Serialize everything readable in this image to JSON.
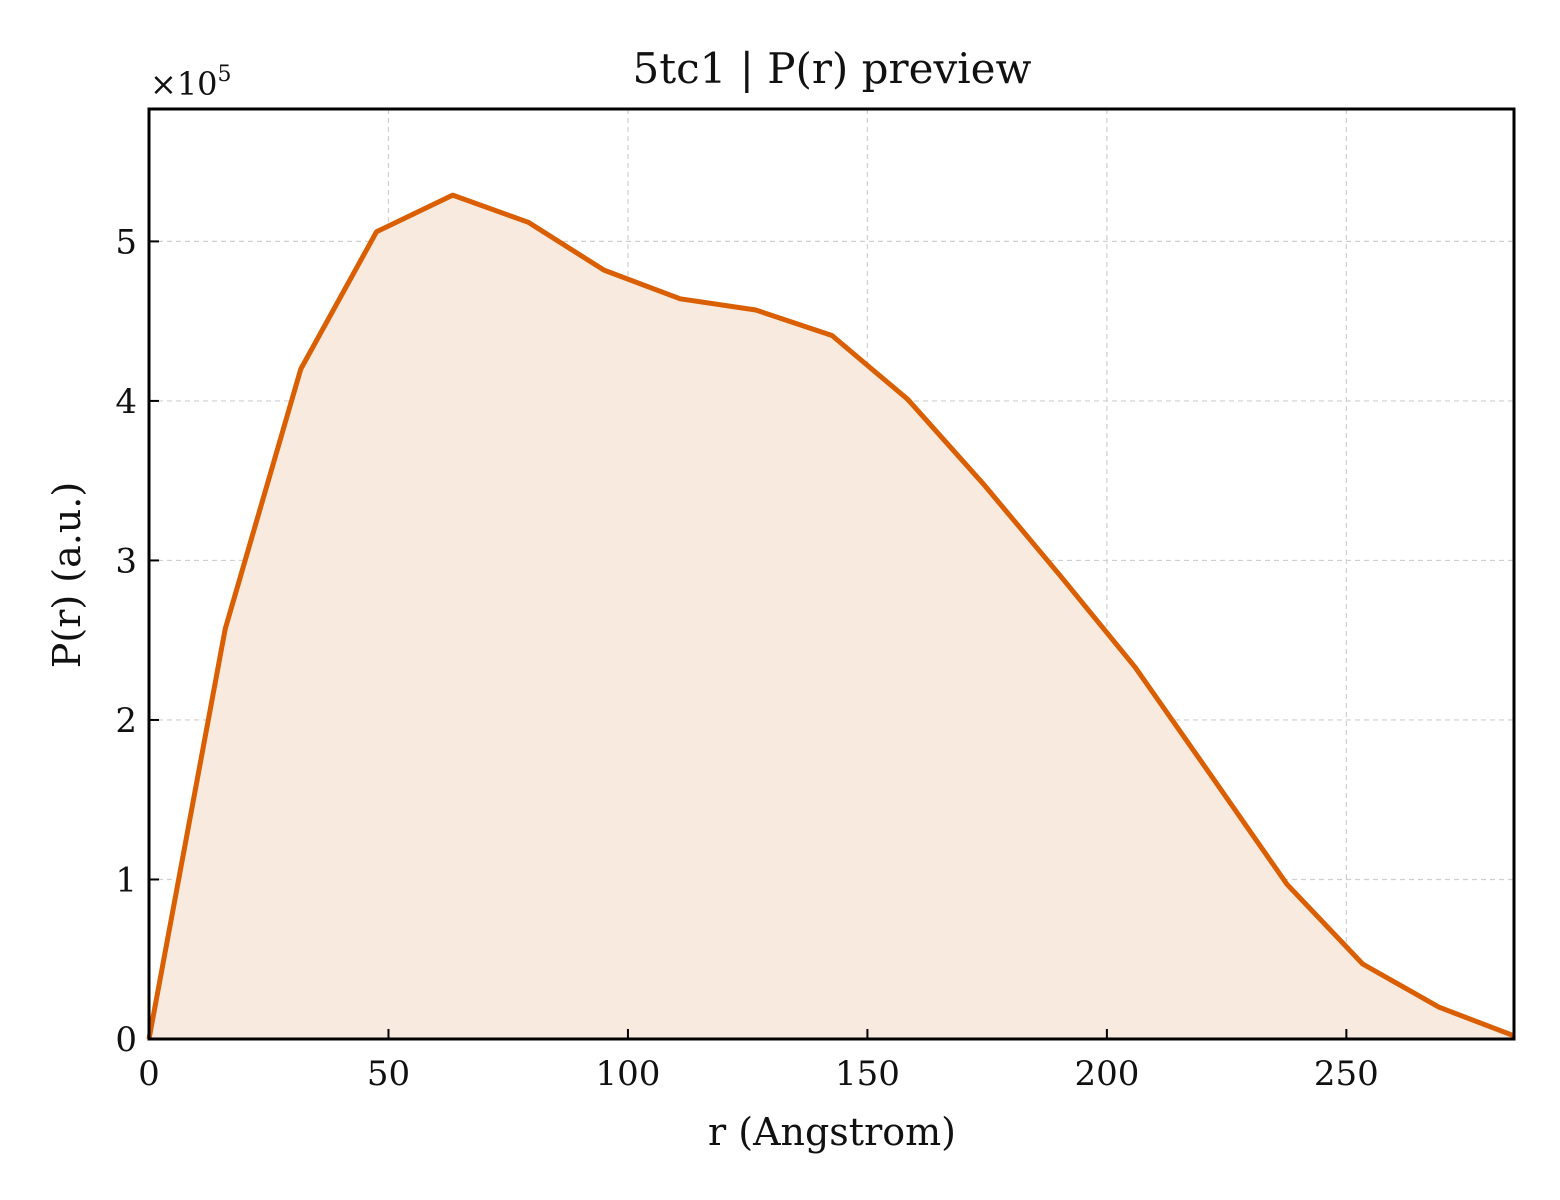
{
  "chart_data": {
    "type": "area",
    "title": "5tc1 | P(r) preview",
    "xlabel": "r (Angstrom)",
    "ylabel": "P(r) (a.u.)",
    "y_offset_text": {
      "base": "×10",
      "exponent": "5"
    },
    "xlim": [
      0,
      285
    ],
    "ylim": [
      0,
      5.83
    ],
    "y_scale_factor": 100000,
    "x_ticks": [
      0,
      50,
      100,
      150,
      200,
      250
    ],
    "x_tick_labels": [
      "0",
      "50",
      "100",
      "150",
      "200",
      "250"
    ],
    "y_ticks": [
      0,
      1,
      2,
      3,
      4,
      5
    ],
    "y_tick_labels": [
      "0",
      "1",
      "2",
      "3",
      "4",
      "5"
    ],
    "grid": true,
    "series": [
      {
        "x": [
          0,
          15.9,
          31.7,
          47.5,
          63.4,
          79.2,
          95.0,
          110.9,
          126.7,
          142.6,
          158.4,
          174.2,
          190.1,
          205.9,
          221.8,
          237.6,
          253.4,
          269.3,
          285.0
        ],
        "y": [
          0,
          2.57,
          4.2,
          5.06,
          5.29,
          5.12,
          4.82,
          4.64,
          4.57,
          4.41,
          4.01,
          3.48,
          2.91,
          2.33,
          1.65,
          0.97,
          0.47,
          0.2,
          0.02
        ]
      }
    ],
    "colors": {
      "line": "#d95f02",
      "fill": "#f9eadf"
    }
  }
}
